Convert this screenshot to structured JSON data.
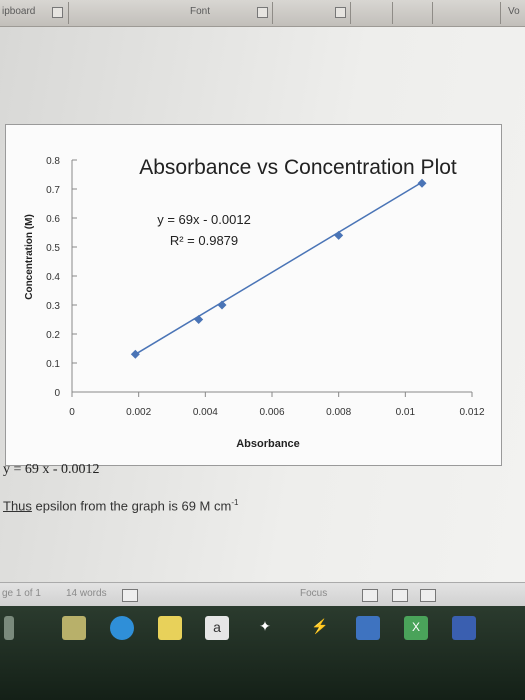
{
  "ribbon": {
    "clipboard_label": "ipboard",
    "font_label": "Font",
    "right_label": "Vo"
  },
  "chart_data": {
    "type": "scatter",
    "title": "Absorbance vs Concentration Plot",
    "xlabel": "Absorbance",
    "ylabel": "Concentration (M)",
    "xlim": [
      0,
      0.012
    ],
    "ylim": [
      0,
      0.8
    ],
    "xticks": [
      "0",
      "0.002",
      "0.004",
      "0.006",
      "0.008",
      "0.01",
      "0.012"
    ],
    "yticks": [
      "0",
      "0.1",
      "0.2",
      "0.3",
      "0.4",
      "0.5",
      "0.6",
      "0.7",
      "0.8"
    ],
    "series": [
      {
        "x": [
          0.0019,
          0.0038,
          0.0045,
          0.008,
          0.0105
        ],
        "y": [
          0.13,
          0.25,
          0.3,
          0.54,
          0.72
        ],
        "color": "#4a74b6"
      }
    ],
    "trendline": {
      "equation": "y = 69x - 0.0012",
      "r2": "R² = 0.9879",
      "color": "#4a74b6"
    },
    "grid": false
  },
  "document": {
    "equation": "y = 69 x - 0.0012",
    "thus_word": "Thus",
    "thus_rest": " epsilon from the graph is 69 M",
    "thus_unit": " cm",
    "thus_sup": "-1"
  },
  "status": {
    "page": "ge 1 of 1",
    "words": "14 words",
    "focus": "Focus"
  },
  "taskbar": {
    "a_label": "a",
    "x_label": "X"
  }
}
